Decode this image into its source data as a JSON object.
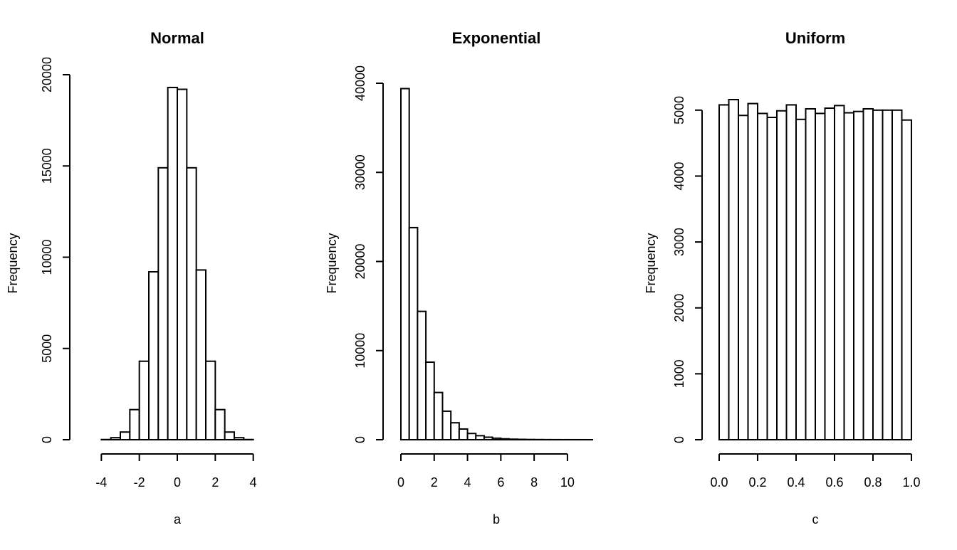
{
  "chart_data": [
    {
      "type": "bar",
      "title": "Normal",
      "xlabel": "a",
      "ylabel": "Frequency",
      "bin_width": 0.5,
      "bin_start": -4.0,
      "values": [
        10,
        110,
        420,
        1650,
        4300,
        9200,
        14900,
        19300,
        19200,
        14900,
        9300,
        4300,
        1650,
        420,
        110,
        10
      ],
      "xlim": [
        -4.5,
        4.5
      ],
      "ylim": [
        0,
        20000
      ],
      "x_ticks": [
        -4,
        -2,
        0,
        2,
        4
      ],
      "x_tick_labels": [
        "-4",
        "-2",
        "0",
        "2",
        "4"
      ],
      "y_ticks": [
        0,
        5000,
        10000,
        15000,
        20000
      ],
      "y_tick_labels": [
        "0",
        "5000",
        "10000",
        "15000",
        "20000"
      ]
    },
    {
      "type": "bar",
      "title": "Exponential",
      "xlabel": "b",
      "ylabel": "Frequency",
      "bin_width": 0.5,
      "bin_start": 0.0,
      "values": [
        39400,
        23800,
        14400,
        8700,
        5300,
        3200,
        1900,
        1200,
        700,
        450,
        280,
        170,
        100,
        60,
        40,
        25,
        15,
        10,
        6,
        4,
        3,
        2,
        1
      ],
      "xlim": [
        0,
        11.5
      ],
      "ylim": [
        0,
        40000
      ],
      "x_ticks": [
        0,
        2,
        4,
        6,
        8,
        10
      ],
      "x_tick_labels": [
        "0",
        "2",
        "4",
        "6",
        "8",
        "10"
      ],
      "y_ticks": [
        0,
        10000,
        20000,
        30000,
        40000
      ],
      "y_tick_labels": [
        "0",
        "10000",
        "20000",
        "30000",
        "40000"
      ]
    },
    {
      "type": "bar",
      "title": "Uniform",
      "xlabel": "c",
      "ylabel": "Frequency",
      "bin_width": 0.05,
      "bin_start": 0.0,
      "values": [
        5080,
        5160,
        4920,
        5100,
        4950,
        4890,
        4990,
        5080,
        4860,
        5020,
        4950,
        5030,
        5070,
        4960,
        4980,
        5020,
        5000,
        5000,
        5000,
        4850
      ],
      "xlim": [
        0,
        1
      ],
      "ylim": [
        0,
        5160
      ],
      "x_ticks": [
        0.0,
        0.2,
        0.4,
        0.6,
        0.8,
        1.0
      ],
      "x_tick_labels": [
        "0.0",
        "0.2",
        "0.4",
        "0.6",
        "0.8",
        "1.0"
      ],
      "y_ticks": [
        0,
        1000,
        2000,
        3000,
        4000,
        5000
      ],
      "y_tick_labels": [
        "0",
        "1000",
        "2000",
        "3000",
        "4000",
        "5000"
      ]
    }
  ]
}
